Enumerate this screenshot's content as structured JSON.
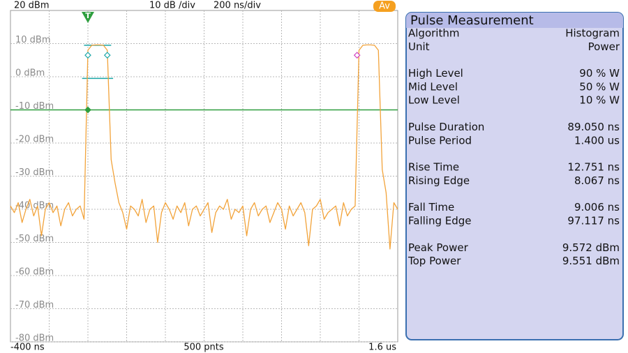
{
  "chart_data": {
    "type": "line",
    "header_left": "20 dBm",
    "header_scale": "10 dB /div",
    "header_time": "200 ns/div",
    "badge": "Av",
    "footer_center": "500 pnts",
    "trigger_label": "T",
    "color": "#f2a33a",
    "grid": true,
    "xlim": [
      -400,
      1600
    ],
    "ylim": [
      -80,
      20
    ],
    "xticks": [
      {
        "value": -400,
        "label": "-400 ns"
      },
      {
        "value": 1600,
        "label": "1.6 us"
      }
    ],
    "xgrid": [
      -200,
      0,
      200,
      400,
      600,
      800,
      1000,
      1200,
      1400
    ],
    "yticks": [
      {
        "value": 10,
        "label": "10 dBm"
      },
      {
        "value": 0,
        "label": "0 dBm"
      },
      {
        "value": -10,
        "label": "-10 dBm"
      },
      {
        "value": -20,
        "label": "-20 dBm"
      },
      {
        "value": -30,
        "label": "-30 dBm"
      },
      {
        "value": -40,
        "label": "-40 dBm"
      },
      {
        "value": -50,
        "label": "-50 dBm"
      },
      {
        "value": -60,
        "label": "-60 dBm"
      },
      {
        "value": -70,
        "label": "-70 dBm"
      },
      {
        "value": -80,
        "label": "-80 dBm"
      }
    ],
    "x": [
      -400,
      -380,
      -360,
      -340,
      -320,
      -300,
      -280,
      -260,
      -240,
      -220,
      -200,
      -180,
      -160,
      -140,
      -120,
      -100,
      -80,
      -60,
      -40,
      -20,
      0,
      20,
      40,
      60,
      80,
      100,
      120,
      140,
      160,
      180,
      200,
      220,
      240,
      260,
      280,
      300,
      320,
      340,
      360,
      380,
      400,
      420,
      440,
      460,
      480,
      500,
      520,
      540,
      560,
      580,
      600,
      620,
      640,
      660,
      680,
      700,
      720,
      740,
      760,
      780,
      800,
      820,
      840,
      860,
      880,
      900,
      920,
      940,
      960,
      980,
      1000,
      1020,
      1040,
      1060,
      1080,
      1100,
      1120,
      1140,
      1160,
      1180,
      1200,
      1220,
      1240,
      1260,
      1280,
      1300,
      1320,
      1340,
      1360,
      1380,
      1400,
      1420,
      1440,
      1460,
      1480,
      1500,
      1520,
      1540,
      1560,
      1580,
      1600
    ],
    "values": [
      -39,
      -41,
      -38,
      -44,
      -40,
      -37,
      -42,
      -39,
      -48,
      -40,
      -38,
      -41,
      -39,
      -45,
      -40,
      -38,
      -42,
      -40,
      -39,
      -43,
      8,
      9.5,
      9.6,
      9.6,
      9.5,
      8,
      -25,
      -32,
      -38,
      -41,
      -46,
      -39,
      -40,
      -42,
      -37,
      -44,
      -40,
      -39,
      -50,
      -41,
      -38,
      -40,
      -43,
      -39,
      -41,
      -38,
      -45,
      -40,
      -39,
      -42,
      -40,
      -38,
      -47,
      -41,
      -39,
      -40,
      -37,
      -43,
      -40,
      -41,
      -39,
      -48,
      -40,
      -38,
      -42,
      -40,
      -39,
      -44,
      -41,
      -38,
      -40,
      -46,
      -39,
      -42,
      -40,
      -38,
      -41,
      -51,
      -40,
      -39,
      -37,
      -43,
      -41,
      -40,
      -39,
      -45,
      -38,
      -42,
      -40,
      -39,
      8,
      9.5,
      9.6,
      9.6,
      9.5,
      8,
      -28,
      -35,
      -52,
      -38,
      -40
    ],
    "hlines": [
      {
        "value": -10,
        "color": "#2e9e3e"
      }
    ],
    "level_segments": [
      {
        "y": 9.5,
        "x": [
          -20,
          120
        ],
        "color": "#1aa6a6"
      },
      {
        "y": -0.5,
        "x": [
          -30,
          130
        ],
        "color": "#1aa6a6"
      }
    ],
    "markers": [
      {
        "x": 0,
        "y": -10,
        "color": "#2e9e3e"
      },
      {
        "x": 0,
        "y": 6.5,
        "color": "#1aa6a6"
      },
      {
        "x": 100,
        "y": 6.5,
        "color": "#1aa6a6"
      },
      {
        "x": 1390,
        "y": 6.5,
        "color": "#d040c0"
      }
    ]
  },
  "panel": {
    "title": "Pulse Measurement",
    "groups": [
      [
        [
          "Algorithm",
          "Histogram"
        ],
        [
          "Unit",
          "Power"
        ]
      ],
      [
        [
          "High Level",
          "90 % W"
        ],
        [
          "Mid Level",
          "50 % W"
        ],
        [
          "Low Level",
          "10 % W"
        ]
      ],
      [
        [
          "Pulse Duration",
          "89.050 ns"
        ],
        [
          "Pulse Period",
          "1.400 us"
        ]
      ],
      [
        [
          "Rise Time",
          "12.751 ns"
        ],
        [
          "Rising Edge",
          "8.067 ns"
        ]
      ],
      [
        [
          "Fall Time",
          "9.006 ns"
        ],
        [
          "Falling Edge",
          "97.117 ns"
        ]
      ],
      [
        [
          "Peak Power",
          "9.572 dBm"
        ],
        [
          "Top Power",
          "9.551 dBm"
        ]
      ]
    ]
  }
}
